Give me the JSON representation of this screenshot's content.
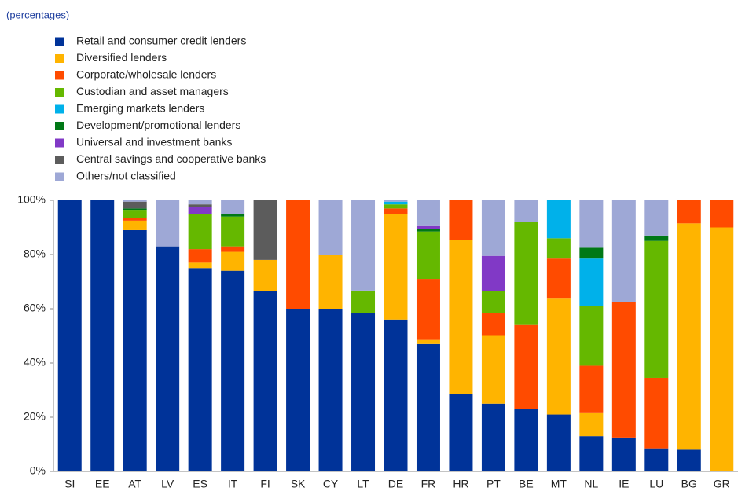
{
  "chart_data": {
    "type": "stacked_bar",
    "subtitle": "(percentages)",
    "categories": [
      "SI",
      "EE",
      "AT",
      "LV",
      "ES",
      "IT",
      "FI",
      "SK",
      "CY",
      "LT",
      "DE",
      "FR",
      "HR",
      "PT",
      "BE",
      "MT",
      "NL",
      "IE",
      "LU",
      "BG",
      "GR"
    ],
    "series": [
      {
        "name": "Retail and consumer credit lenders",
        "color": "#003399",
        "values": [
          100,
          100,
          89,
          83,
          75,
          74,
          66.5,
          60,
          60,
          58.3,
          56,
          47,
          28.5,
          25,
          23,
          21,
          13,
          12.5,
          8.5,
          8,
          0
        ]
      },
      {
        "name": "Diversified lenders",
        "color": "#ffb400",
        "values": [
          0,
          0,
          3.5,
          0,
          2,
          7,
          11.5,
          0,
          20,
          0,
          39,
          1.5,
          57,
          25,
          0,
          43,
          8.5,
          0,
          0,
          83.5,
          90
        ]
      },
      {
        "name": "Corporate/wholesale lenders",
        "color": "#ff4b00",
        "values": [
          0,
          0,
          1,
          0,
          5,
          2,
          0,
          40,
          0,
          0,
          2,
          22.5,
          14.5,
          8.5,
          31,
          14.5,
          17.5,
          50,
          26,
          8.5,
          10
        ]
      },
      {
        "name": "Custodian and asset managers",
        "color": "#65b800",
        "values": [
          0,
          0,
          3,
          0,
          13,
          11,
          0,
          0,
          0,
          8.4,
          1.5,
          17.5,
          0,
          8,
          38,
          7.5,
          22,
          0,
          50.5,
          0,
          0
        ]
      },
      {
        "name": "Emerging markets lenders",
        "color": "#00b1ea",
        "values": [
          0,
          0,
          0,
          0,
          0,
          0,
          0,
          0,
          0,
          0,
          1,
          0,
          0,
          0,
          0,
          14,
          17.5,
          0,
          0,
          0,
          0
        ]
      },
      {
        "name": "Development/promotional lenders",
        "color": "#007816",
        "values": [
          0,
          0,
          0.5,
          0,
          0,
          1,
          0,
          0,
          0,
          0,
          0,
          1,
          0,
          0,
          0,
          0,
          4,
          0,
          2,
          0,
          0
        ]
      },
      {
        "name": "Universal and investment banks",
        "color": "#8139c6",
        "values": [
          0,
          0,
          0,
          0,
          2.5,
          0,
          0,
          0,
          0,
          0,
          0,
          1,
          0,
          13,
          0,
          0,
          0,
          0,
          0,
          0,
          0
        ]
      },
      {
        "name": "Central savings and cooperative banks",
        "color": "#5c5c5c",
        "values": [
          0,
          0,
          2.5,
          0,
          1,
          0,
          22,
          0,
          0,
          0,
          0,
          0,
          0,
          0,
          0,
          0,
          0,
          0,
          0,
          0,
          0
        ]
      },
      {
        "name": "Others/not classified",
        "color": "#9ea8d6",
        "values": [
          0,
          0,
          0.5,
          17,
          1.5,
          5,
          0,
          0,
          20,
          33.3,
          0.5,
          9.5,
          0,
          20.5,
          8,
          0,
          17.5,
          37.5,
          13,
          0,
          0
        ]
      }
    ],
    "ylim": [
      0,
      100
    ],
    "yticks": [
      {
        "value": 0,
        "label": "0%"
      },
      {
        "value": 20,
        "label": "20%"
      },
      {
        "value": 40,
        "label": "40%"
      },
      {
        "value": 60,
        "label": "60%"
      },
      {
        "value": 80,
        "label": "80%"
      },
      {
        "value": 100,
        "label": "100%"
      }
    ]
  }
}
